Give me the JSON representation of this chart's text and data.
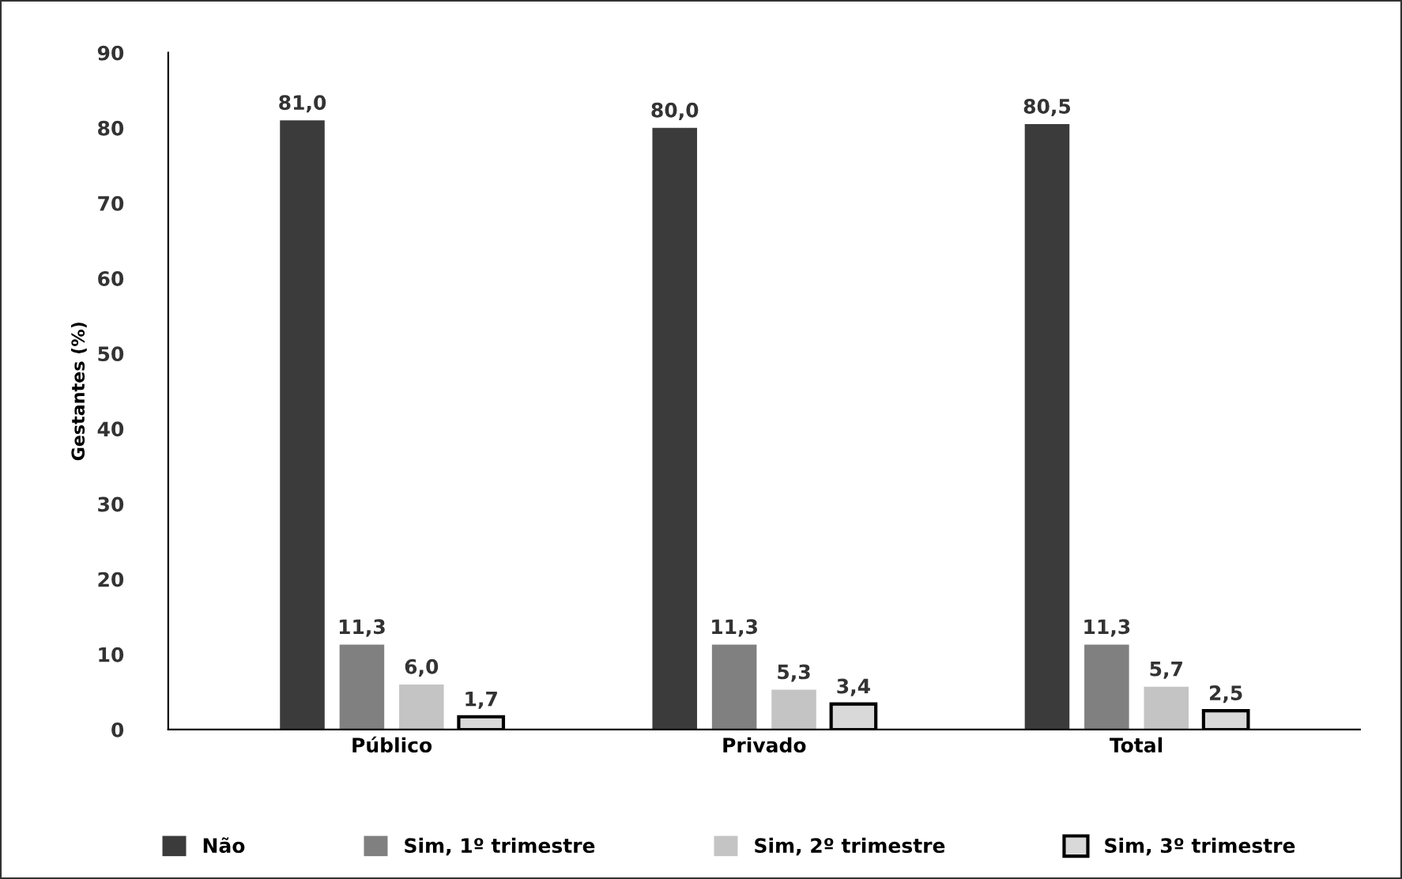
{
  "chart_data": {
    "type": "bar",
    "ylabel": "Gestantes (%)",
    "categories": [
      "Público",
      "Privado",
      "Total"
    ],
    "series": [
      {
        "name": "Não",
        "color": "#3b3b3b",
        "values": [
          81.0,
          80.0,
          80.5
        ],
        "value_labels": [
          "81,0",
          "80,0",
          "80,5"
        ]
      },
      {
        "name": "Sim, 1º trimestre",
        "color": "#808080",
        "values": [
          11.3,
          11.3,
          11.3
        ],
        "value_labels": [
          "11,3",
          "11,3",
          "11,3"
        ]
      },
      {
        "name": "Sim, 2º trimestre",
        "color": "#c4c4c4",
        "values": [
          6.0,
          5.3,
          5.7
        ],
        "value_labels": [
          "6,0",
          "5,3",
          "5,7"
        ]
      },
      {
        "name": "Sim, 3º trimestre",
        "color": "#d9d9d9",
        "values": [
          1.7,
          3.4,
          2.5
        ],
        "value_labels": [
          "1,7",
          "3,4",
          "2,5"
        ]
      }
    ],
    "ylim": [
      0,
      90
    ],
    "yticks": [
      0,
      10,
      20,
      30,
      40,
      50,
      60,
      70,
      80,
      90
    ],
    "grid": false,
    "legend": "bottom"
  }
}
